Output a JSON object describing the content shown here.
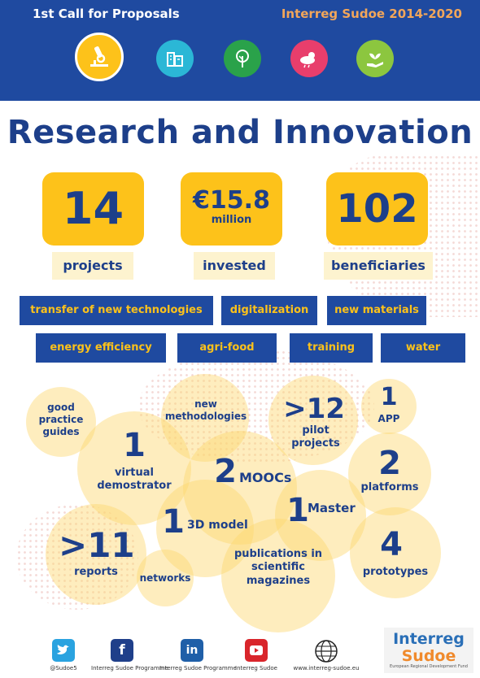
{
  "header": {
    "call_title": "1st Call for Proposals",
    "program_title": "Interreg Sudoe 2014-2020",
    "topics": [
      {
        "icon": "microscope-icon",
        "color": "#fdc21a"
      },
      {
        "icon": "buildings-icon",
        "color": "#2bb7d6"
      },
      {
        "icon": "tree-icon",
        "color": "#2aa24a"
      },
      {
        "icon": "cloud-sun-icon",
        "color": "#e83e6c"
      },
      {
        "icon": "hand-plant-icon",
        "color": "#8cc63f"
      }
    ]
  },
  "title": "Research and Innovation",
  "stats": [
    {
      "value": "14",
      "unit": "",
      "label": "projects"
    },
    {
      "value": "€15.8",
      "unit": "million",
      "label": "invested"
    },
    {
      "value": "102",
      "unit": "",
      "label": "beneficiaries"
    }
  ],
  "tags": {
    "row1": [
      "transfer of new technologies",
      "digitalization",
      "new materials"
    ],
    "row2": [
      "energy efficiency",
      "agri-food",
      "training",
      "water"
    ]
  },
  "outputs": {
    "good_practice": "good\npractice\nguides",
    "virtual_num": "1",
    "virtual_label": "virtual\ndemostrator",
    "methodologies": "new\nmethodologies",
    "pilot_num": ">12",
    "pilot_label": "pilot\nprojects",
    "app_num": "1",
    "app_label": "APP",
    "moocs_num": "2",
    "moocs_label": "MOOCs",
    "platforms_num": "2",
    "platforms_label": "platforms",
    "model_num": "1",
    "model_label": "3D model",
    "master_num": "1",
    "master_label": "Master",
    "reports_num": ">11",
    "reports_label": "reports",
    "networks": "networks",
    "publications": "publications in\nscientific\nmagazines",
    "prototypes_num": "4",
    "prototypes_label": "prototypes"
  },
  "footer": {
    "twitter": "@Sudoe5",
    "facebook": "Interreg Sudoe Programme",
    "linkedin": "Interreg Sudoe Programme",
    "youtube": "Interreg Sudoe",
    "web": "www.interreg-sudoe.eu",
    "logo_line1": "Interreg",
    "logo_line2": "Sudoe",
    "logo_sub": "European Regional Development Fund"
  }
}
